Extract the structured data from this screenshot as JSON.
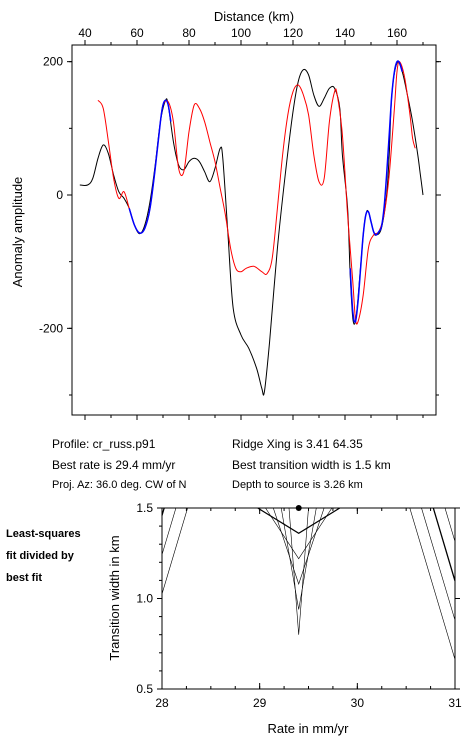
{
  "info": {
    "profile": "Profile: cr_russ.p91",
    "best_rate": "Best rate is 29.4 mm/yr",
    "proj_az": "Proj. Az: 36.0 deg. CW of N",
    "ridge_xing": "Ridge Xing is 3.41  64.35",
    "best_width": "Best transition width is 1.5 km",
    "depth": "Depth to source is    3.26 km"
  },
  "side_note": [
    "Least-squares",
    "fit divided by",
    "best fit"
  ],
  "chart_data": [
    {
      "type": "line",
      "title": "",
      "xlabel": "Distance (km)",
      "ylabel": "Anomaly amplitude",
      "xlim": [
        35,
        175
      ],
      "ylim": [
        -330,
        225
      ],
      "x_ticks": [
        40,
        60,
        80,
        100,
        120,
        140,
        160
      ],
      "y_ticks": [
        200,
        0,
        -200
      ],
      "grid": false,
      "colors": {
        "observed": "#000000",
        "model": "#ff0000",
        "fit_window": "#0000ff"
      },
      "series": [
        {
          "key": "observed",
          "points": [
            [
              38,
              15
            ],
            [
              41,
              15
            ],
            [
              43,
              25
            ],
            [
              45,
              55
            ],
            [
              47,
              75
            ],
            [
              49,
              62
            ],
            [
              51,
              30
            ],
            [
              53,
              5
            ],
            [
              55,
              -5
            ],
            [
              57,
              -20
            ],
            [
              59,
              -45
            ],
            [
              61,
              -58
            ],
            [
              63,
              -45
            ],
            [
              65,
              -10
            ],
            [
              67,
              45
            ],
            [
              69,
              110
            ],
            [
              71,
              142
            ],
            [
              72,
              135
            ],
            [
              74,
              80
            ],
            [
              76,
              45
            ],
            [
              78,
              38
            ],
            [
              80,
              50
            ],
            [
              82,
              55
            ],
            [
              84,
              50
            ],
            [
              86,
              35
            ],
            [
              88,
              20
            ],
            [
              90,
              40
            ],
            [
              92,
              70
            ],
            [
              93,
              55
            ],
            [
              95,
              -60
            ],
            [
              97,
              -170
            ],
            [
              100,
              -210
            ],
            [
              103,
              -230
            ],
            [
              106,
              -260
            ],
            [
              108,
              -290
            ],
            [
              109,
              -295
            ],
            [
              111,
              -220
            ],
            [
              114,
              -80
            ],
            [
              117,
              30
            ],
            [
              120,
              125
            ],
            [
              122,
              170
            ],
            [
              124,
              188
            ],
            [
              126,
              180
            ],
            [
              128,
              150
            ],
            [
              130,
              133
            ],
            [
              132,
              145
            ],
            [
              134,
              160
            ],
            [
              136,
              160
            ],
            [
              138,
              130
            ],
            [
              139,
              60
            ],
            [
              141,
              -20
            ],
            [
              142,
              -120
            ],
            [
              143,
              -185
            ],
            [
              144,
              -190
            ],
            [
              145,
              -155
            ],
            [
              147,
              -60
            ],
            [
              148,
              -30
            ],
            [
              149,
              -25
            ],
            [
              151,
              -55
            ],
            [
              152,
              -60
            ],
            [
              154,
              -50
            ],
            [
              156,
              0
            ],
            [
              157,
              60
            ],
            [
              158,
              150
            ],
            [
              160,
              198
            ],
            [
              162,
              185
            ],
            [
              164,
              150
            ],
            [
              166,
              110
            ],
            [
              168,
              60
            ],
            [
              169,
              30
            ],
            [
              170,
              0
            ]
          ]
        },
        {
          "key": "model",
          "points": [
            [
              45,
              142
            ],
            [
              47,
              130
            ],
            [
              49,
              80
            ],
            [
              51,
              25
            ],
            [
              53,
              -5
            ],
            [
              55,
              5
            ],
            [
              57,
              -20
            ],
            [
              59,
              -45
            ],
            [
              61,
              -57
            ],
            [
              63,
              -50
            ],
            [
              65,
              -20
            ],
            [
              67,
              40
            ],
            [
              69,
              110
            ],
            [
              70,
              135
            ],
            [
              72,
              140
            ],
            [
              74,
              110
            ],
            [
              76,
              40
            ],
            [
              78,
              35
            ],
            [
              80,
              95
            ],
            [
              82,
              135
            ],
            [
              84,
              130
            ],
            [
              86,
              110
            ],
            [
              88,
              80
            ],
            [
              90,
              50
            ],
            [
              92,
              10
            ],
            [
              94,
              -30
            ],
            [
              96,
              -80
            ],
            [
              98,
              -110
            ],
            [
              100,
              -115
            ],
            [
              102,
              -110
            ],
            [
              105,
              -107
            ],
            [
              108,
              -115
            ],
            [
              110,
              -118
            ],
            [
              112,
              -95
            ],
            [
              114,
              -20
            ],
            [
              116,
              60
            ],
            [
              118,
              120
            ],
            [
              120,
              155
            ],
            [
              122,
              165
            ],
            [
              124,
              150
            ],
            [
              126,
              120
            ],
            [
              128,
              60
            ],
            [
              130,
              20
            ],
            [
              132,
              25
            ],
            [
              134,
              110
            ],
            [
              136,
              155
            ],
            [
              137,
              150
            ],
            [
              139,
              90
            ],
            [
              141,
              -30
            ],
            [
              143,
              -130
            ],
            [
              144,
              -185
            ],
            [
              145,
              -190
            ],
            [
              147,
              -150
            ],
            [
              149,
              -80
            ],
            [
              151,
              -60
            ],
            [
              153,
              -55
            ],
            [
              155,
              -30
            ],
            [
              157,
              30
            ],
            [
              159,
              130
            ],
            [
              160,
              185
            ],
            [
              161,
              200
            ],
            [
              163,
              175
            ],
            [
              165,
              120
            ],
            [
              166,
              85
            ],
            [
              167,
              70
            ]
          ]
        },
        {
          "key": "fit_window",
          "points": [
            [
              57,
              -20
            ],
            [
              59,
              -45
            ],
            [
              61,
              -57
            ],
            [
              63,
              -50
            ],
            [
              65,
              -20
            ],
            [
              67,
              40
            ],
            [
              69,
              110
            ],
            [
              70,
              135
            ],
            [
              71,
              142
            ],
            [
              72,
              135
            ],
            [
              73,
              110
            ]
          ]
        },
        {
          "key": "fit_window",
          "points": [
            [
              142,
              -110
            ],
            [
              143,
              -175
            ],
            [
              144,
              -190
            ],
            [
              145,
              -160
            ],
            [
              146,
              -110
            ],
            [
              147,
              -60
            ],
            [
              148,
              -30
            ],
            [
              149,
              -25
            ],
            [
              150,
              -40
            ],
            [
              151,
              -55
            ],
            [
              152,
              -60
            ],
            [
              153,
              -55
            ],
            [
              154,
              -48
            ],
            [
              155,
              -20
            ],
            [
              156,
              30
            ],
            [
              157,
              90
            ],
            [
              158,
              150
            ],
            [
              159,
              185
            ],
            [
              160,
              200
            ],
            [
              161,
              198
            ],
            [
              162,
              185
            ]
          ]
        }
      ]
    },
    {
      "type": "contour",
      "title": "",
      "xlabel": "Rate in mm/yr",
      "ylabel": "Transition width in km",
      "xlim": [
        28,
        31
      ],
      "ylim": [
        0.5,
        1.5
      ],
      "x_ticks": [
        28,
        29,
        30,
        31
      ],
      "y_ticks": [
        0.5,
        1.0,
        1.5
      ],
      "best_fit": {
        "rate": 29.4,
        "width": 1.5
      },
      "contour_spacing_mm_yr": 0.12,
      "contour_vertex_offset": 0.12,
      "contour_slope_per_km": 0.85
    }
  ]
}
